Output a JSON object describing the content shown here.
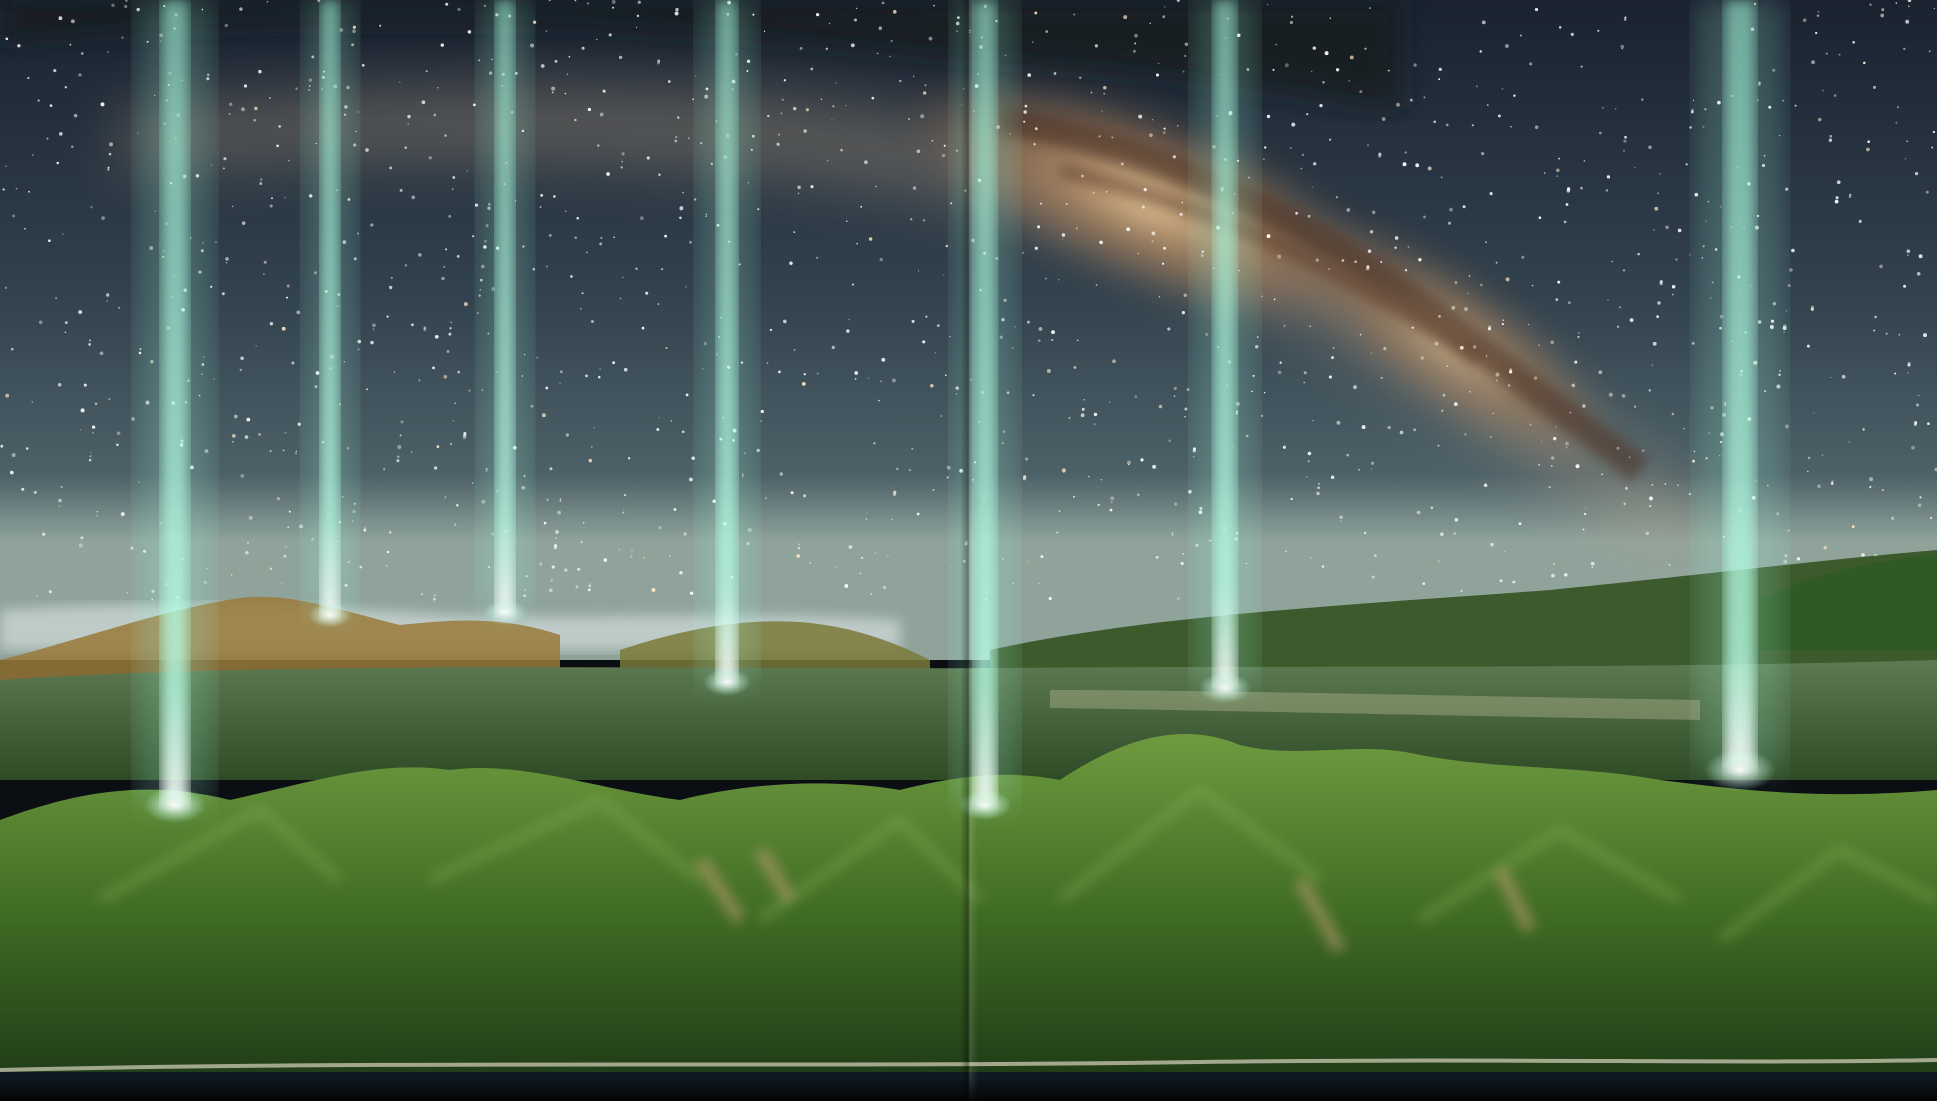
{
  "image": {
    "subject": "milky-way-over-forested-mountains",
    "layout": "two-page-magazine-spread"
  },
  "colors": {
    "sky_top": "#1b2330",
    "sky_mid": "#3b4a55",
    "horizon_haze": "#8fa39b",
    "milky_way_core": "#d9b07a",
    "milky_way_dust": "#5a3b2a",
    "beam": "#9ff2d6",
    "forest_dark": "#1f3b17",
    "forest_light": "#5b8a2e",
    "ridge_sunlit": "#b98a3a",
    "water": "#0e1a22"
  },
  "beams": [
    {
      "id": "beam-1"
    },
    {
      "id": "beam-2"
    },
    {
      "id": "beam-3"
    },
    {
      "id": "beam-4"
    },
    {
      "id": "beam-5"
    },
    {
      "id": "beam-6"
    },
    {
      "id": "beam-7"
    }
  ]
}
